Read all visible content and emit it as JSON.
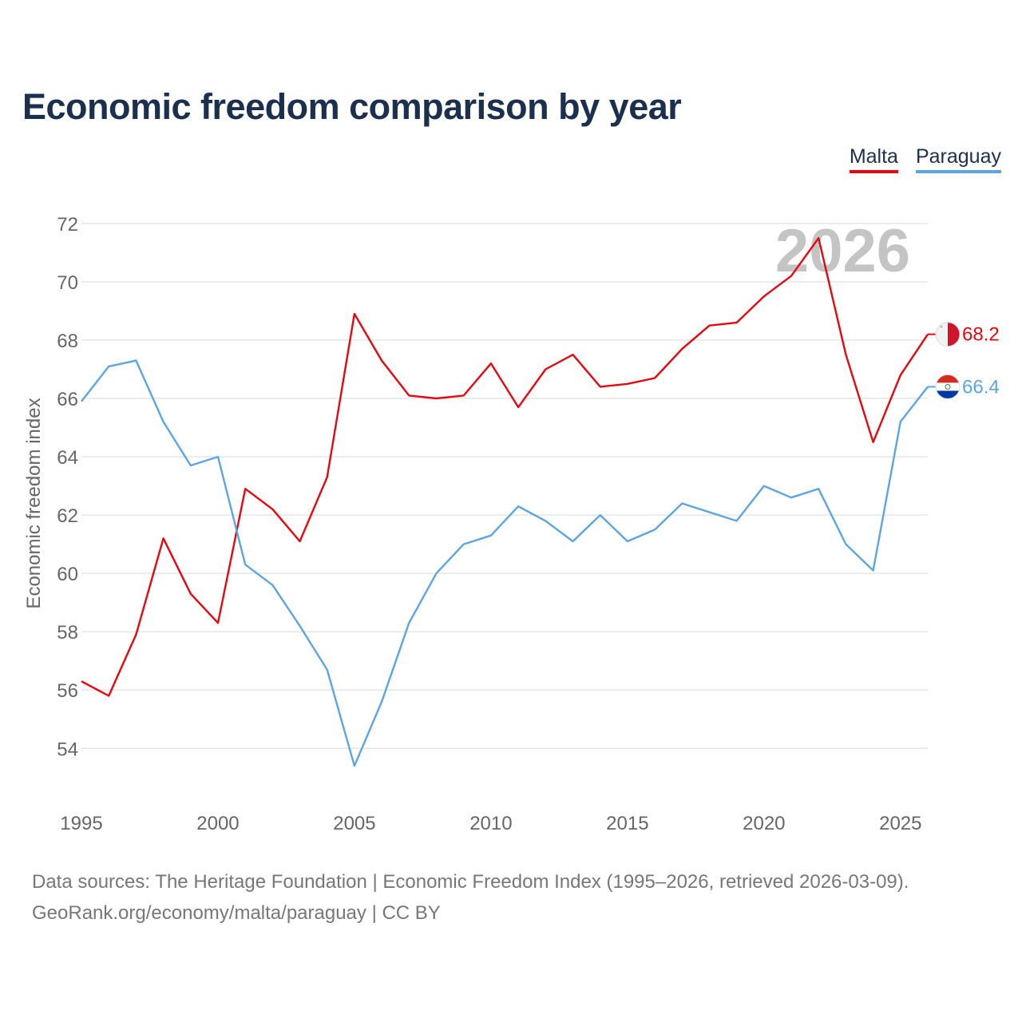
{
  "chart_data": {
    "type": "line",
    "title": "Economic freedom comparison by year",
    "ylabel": "Economic freedom index",
    "xlabel": "",
    "watermark_year": "2026",
    "x": [
      1995,
      1996,
      1997,
      1998,
      1999,
      2000,
      2001,
      2002,
      2003,
      2004,
      2005,
      2006,
      2007,
      2008,
      2009,
      2010,
      2011,
      2012,
      2013,
      2014,
      2015,
      2016,
      2017,
      2018,
      2019,
      2020,
      2021,
      2022,
      2023,
      2024,
      2025,
      2026
    ],
    "xticks": [
      1995,
      2000,
      2005,
      2010,
      2015,
      2020,
      2025
    ],
    "yticks": [
      54,
      56,
      58,
      60,
      62,
      64,
      66,
      68,
      70,
      72
    ],
    "xlim": [
      1995,
      2026
    ],
    "ylim": [
      52.2,
      72.6
    ],
    "grid": true,
    "legend_position": "top-right",
    "series": [
      {
        "name": "Malta",
        "color": "#e8070f",
        "end_label": "68.2",
        "values": [
          56.3,
          55.8,
          57.9,
          61.2,
          59.3,
          58.3,
          62.9,
          62.2,
          61.1,
          63.3,
          68.9,
          67.3,
          66.1,
          66.0,
          66.1,
          67.2,
          65.7,
          67.0,
          67.5,
          66.4,
          66.5,
          66.7,
          67.7,
          68.5,
          68.6,
          69.5,
          70.2,
          71.5,
          67.5,
          64.5,
          66.8,
          68.2
        ]
      },
      {
        "name": "Paraguay",
        "color": "#5ba5e6",
        "end_label": "66.4",
        "values": [
          65.9,
          67.1,
          67.3,
          65.2,
          63.7,
          64.0,
          60.3,
          59.6,
          58.2,
          56.7,
          53.4,
          55.6,
          58.3,
          60.0,
          61.0,
          61.3,
          62.3,
          61.8,
          61.1,
          62.0,
          61.1,
          61.5,
          62.4,
          62.1,
          61.8,
          63.0,
          62.6,
          62.9,
          61.0,
          60.1,
          65.2,
          66.4
        ]
      }
    ]
  },
  "footer": {
    "sources": "Data sources: The Heritage Foundation | Economic Freedom Index (1995–2026, retrieved 2026-03-09).",
    "credit": "GeoRank.org/economy/malta/paraguay | CC BY"
  }
}
